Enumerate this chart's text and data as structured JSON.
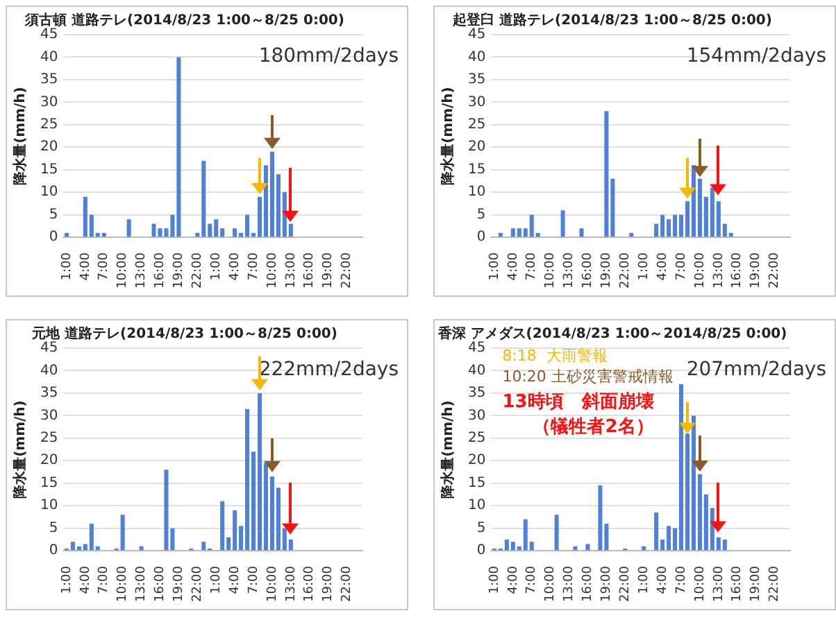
{
  "chart_data": [
    {
      "type": "bar",
      "title": "須古頓 道路テレ(2014/8/23 1:00～8/25 0:00)",
      "ylabel": "降水量(mm/h)",
      "categories": [
        "1:00",
        null,
        null,
        "4:00",
        null,
        null,
        "7:00",
        null,
        null,
        "10:00",
        null,
        null,
        "13:00",
        null,
        null,
        "16:00",
        null,
        null,
        "19:00",
        null,
        null,
        "22:00",
        null,
        null,
        "1:00",
        null,
        null,
        "4:00",
        null,
        null,
        "7:00",
        null,
        null,
        "10:00",
        null,
        null,
        "13:00",
        null,
        null,
        "16:00",
        null,
        null,
        "19:00",
        null,
        null,
        "22:00",
        null,
        null
      ],
      "values": [
        1,
        0,
        0,
        9,
        5,
        1,
        1,
        0,
        0,
        0,
        4,
        0,
        0,
        0,
        3,
        2,
        2,
        5,
        40,
        0,
        0,
        1,
        17,
        3,
        4,
        2,
        0,
        2,
        1,
        5,
        1,
        9,
        16,
        19,
        14,
        10,
        3,
        0,
        0,
        0,
        0,
        0,
        0,
        0,
        0,
        0,
        0,
        0
      ],
      "color": "#4f81d9",
      "ylim": [
        0,
        45
      ],
      "yticks": [
        0,
        5,
        10,
        15,
        20,
        25,
        30,
        35,
        40,
        45
      ],
      "grid": "y",
      "annotations": [
        "180mm/2days"
      ]
    },
    {
      "type": "bar",
      "title": "起登臼 道路テレ(2014/8/23 1:00～8/25 0:00)",
      "ylabel": "降水量(mm/h)",
      "categories": [
        "1:00",
        null,
        null,
        "4:00",
        null,
        null,
        "7:00",
        null,
        null,
        "10:00",
        null,
        null,
        "13:00",
        null,
        null,
        "16:00",
        null,
        null,
        "19:00",
        null,
        null,
        "22:00",
        null,
        null,
        "1:00",
        null,
        null,
        "4:00",
        null,
        null,
        "7:00",
        null,
        null,
        "10:00",
        null,
        null,
        "13:00",
        null,
        null,
        "16:00",
        null,
        null,
        "19:00",
        null,
        null,
        "22:00",
        null,
        null
      ],
      "values": [
        0,
        1,
        0,
        2,
        2,
        2,
        5,
        1,
        0,
        0,
        0,
        6,
        0,
        0,
        2,
        0,
        0,
        0,
        28,
        13,
        0,
        0,
        1,
        0,
        0,
        0,
        3,
        5,
        4,
        5,
        5,
        8,
        16,
        13,
        9,
        11,
        8,
        3,
        1,
        0,
        0,
        0,
        0,
        0,
        0,
        0,
        0,
        0
      ],
      "color": "#4f81d9",
      "ylim": [
        0,
        45
      ],
      "yticks": [
        0,
        5,
        10,
        15,
        20,
        25,
        30,
        35,
        40,
        45
      ],
      "grid": "y",
      "annotations": [
        "154mm/2days"
      ]
    },
    {
      "type": "bar",
      "title": "元地 道路テレ(2014/8/23 1:00～8/25 0:00)",
      "ylabel": "降水量(mm/h)",
      "categories": [
        "1:00",
        null,
        null,
        "4:00",
        null,
        null,
        "7:00",
        null,
        null,
        "10:00",
        null,
        null,
        "13:00",
        null,
        null,
        "16:00",
        null,
        null,
        "19:00",
        null,
        null,
        "22:00",
        null,
        null,
        "1:00",
        null,
        null,
        "4:00",
        null,
        null,
        "7:00",
        null,
        null,
        "10:00",
        null,
        null,
        "13:00",
        null,
        null,
        "16:00",
        null,
        null,
        "19:00",
        null,
        null,
        "22:00",
        null,
        null
      ],
      "values": [
        0.5,
        2,
        1,
        1.5,
        6,
        1,
        0,
        0,
        0.5,
        8,
        0,
        0,
        1,
        0,
        0,
        0,
        18,
        5,
        0,
        0,
        0.5,
        0,
        2,
        0.5,
        0,
        11,
        3,
        9,
        5.5,
        31.5,
        22,
        35,
        19.5,
        16.5,
        14,
        5,
        2.5,
        0,
        0,
        0,
        0,
        0,
        0,
        0,
        0,
        0,
        0,
        0
      ],
      "color": "#4f81d9",
      "ylim": [
        0,
        45
      ],
      "yticks": [
        0,
        5,
        10,
        15,
        20,
        25,
        30,
        35,
        40,
        45
      ],
      "grid": "y",
      "annotations": [
        "222mm/2days"
      ]
    },
    {
      "type": "bar",
      "title": "香深 アメダス(2014/8/23 1:00～2014/8/25 0:00)",
      "ylabel": "降水量(mm/h)",
      "categories": [
        "1:00",
        null,
        null,
        "4:00",
        null,
        null,
        "7:00",
        null,
        null,
        "10:00",
        null,
        null,
        "13:00",
        null,
        null,
        "16:00",
        null,
        null,
        "19:00",
        null,
        null,
        "22:00",
        null,
        null,
        "1:00",
        null,
        null,
        "4:00",
        null,
        null,
        "7:00",
        null,
        null,
        "10:00",
        null,
        null,
        "13:00",
        null,
        null,
        "16:00",
        null,
        null,
        "19:00",
        null,
        null,
        "22:00",
        null,
        null
      ],
      "values": [
        0.5,
        0.5,
        2.5,
        2,
        1,
        7,
        2,
        0,
        0,
        0,
        8,
        0,
        0,
        1,
        0,
        1.5,
        0,
        14.5,
        6,
        0,
        0,
        0.5,
        0,
        0,
        1,
        0,
        8.5,
        2.5,
        5.5,
        5,
        37,
        26,
        30,
        17,
        12.5,
        9.5,
        3,
        2.5,
        0,
        0,
        0,
        0,
        0,
        0,
        0,
        0,
        0,
        0
      ],
      "color": "#4f81d9",
      "ylim": [
        0,
        45
      ],
      "yticks": [
        0,
        5,
        10,
        15,
        20,
        25,
        30,
        35,
        40,
        45
      ],
      "grid": "y",
      "annotations": [
        "207mm/2days",
        "8:18  大雨警報",
        "10:20 土砂災害警戒情報",
        "13時頃　斜面崩壊",
        "（犠牲者2名）"
      ]
    }
  ]
}
